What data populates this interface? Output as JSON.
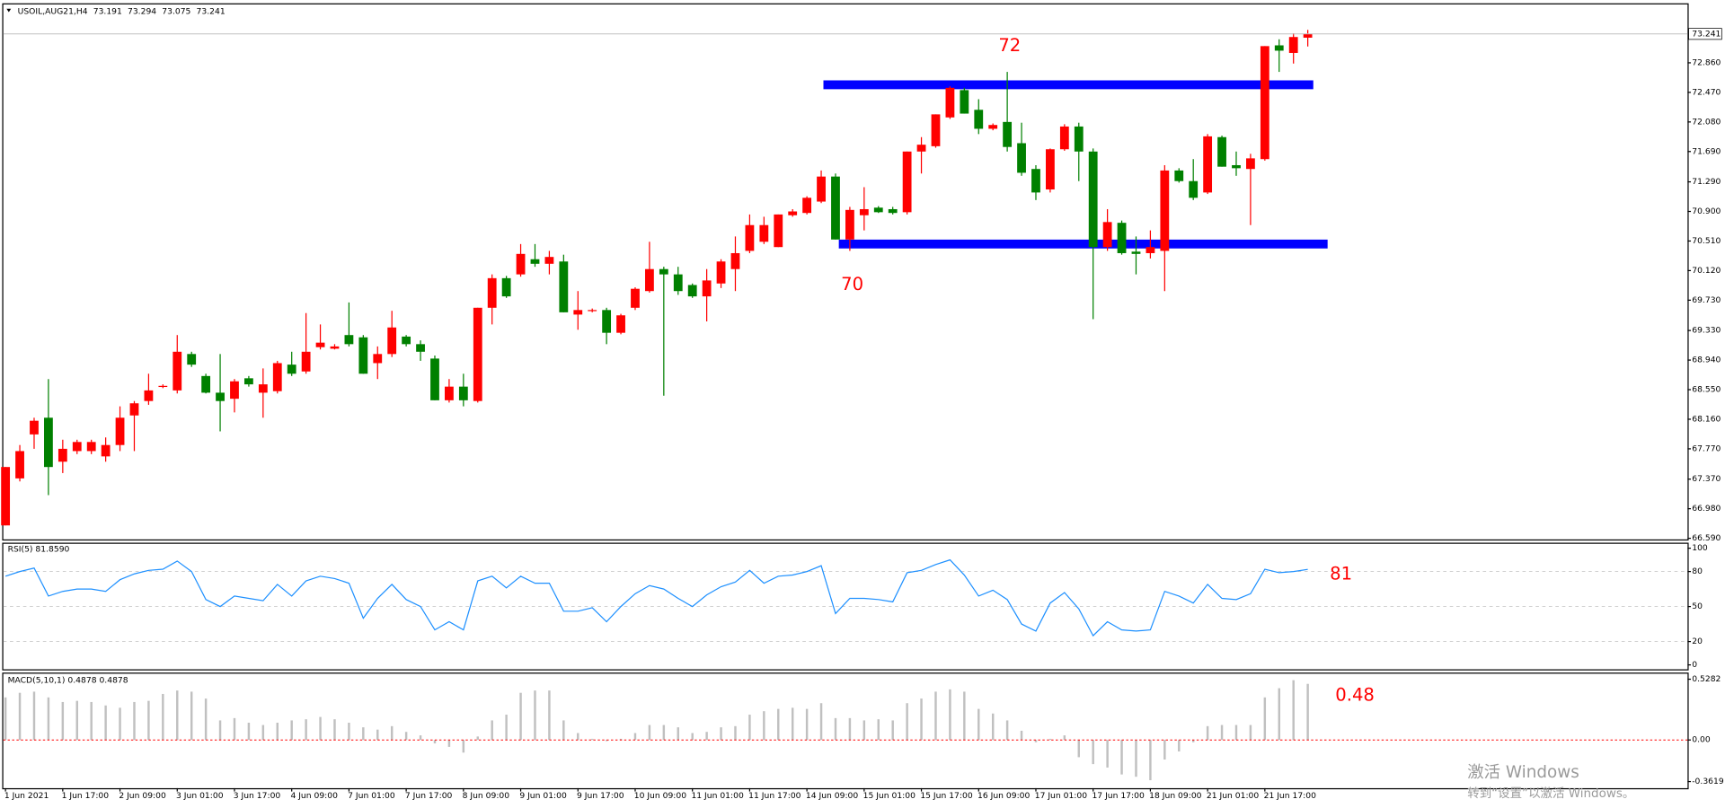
{
  "chart_data": [
    {
      "type": "candlestick",
      "title": "USOIL,AUG21,H4",
      "categories": [
        "1 Jun 2021",
        null,
        null,
        null,
        "1 Jun 17:00",
        null,
        null,
        null,
        "2 Jun 09:00",
        null,
        null,
        null,
        "3 Jun 01:00",
        null,
        null,
        null,
        "3 Jun 17:00",
        null,
        null,
        null,
        "4 Jun 09:00",
        null,
        null,
        null,
        "7 Jun 01:00",
        null,
        null,
        null,
        "7 Jun 17:00",
        null,
        null,
        null,
        "8 Jun 09:00",
        null,
        null,
        null,
        "9 Jun 01:00",
        null,
        null,
        null,
        "9 Jun 17:00",
        null,
        null,
        null,
        "10 Jun 09:00",
        null,
        null,
        null,
        "11 Jun 01:00",
        null,
        null,
        null,
        "11 Jun 17:00",
        null,
        null,
        null,
        "14 Jun 09:00",
        null,
        null,
        null,
        "15 Jun 01:00",
        null,
        null,
        null,
        "15 Jun 17:00",
        null,
        null,
        null,
        "16 Jun 09:00",
        null,
        null,
        null,
        "17 Jun 01:00",
        null,
        null,
        null,
        "17 Jun 17:00",
        null,
        null,
        null,
        "18 Jun 09:00",
        null,
        null,
        null,
        "21 Jun 01:00",
        null,
        null,
        null,
        "21 Jun 17:00",
        null,
        null,
        null
      ],
      "open": [
        66.76,
        67.38,
        67.96,
        68.18,
        67.6,
        67.74,
        67.74,
        67.67,
        67.82,
        68.21,
        68.4,
        68.59,
        68.54,
        69.02,
        68.73,
        68.51,
        68.43,
        68.7,
        68.51,
        68.53,
        68.88,
        68.79,
        69.11,
        69.09,
        69.27,
        69.24,
        68.9,
        69.02,
        69.25,
        69.15,
        68.96,
        68.41,
        68.59,
        68.4,
        69.63,
        70.02,
        70.07,
        70.27,
        70.21,
        70.24,
        69.54,
        69.59,
        69.6,
        69.3,
        69.63,
        69.85,
        70.14,
        70.07,
        69.93,
        69.78,
        69.95,
        70.14,
        70.38,
        70.5,
        70.43,
        70.85,
        70.88,
        71.03,
        71.36,
        70.53,
        70.85,
        70.95,
        70.93,
        70.89,
        71.69,
        71.76,
        72.14,
        72.5,
        72.24,
        71.99,
        72.08,
        71.8,
        71.46,
        71.19,
        71.72,
        72.02,
        71.69,
        70.43,
        70.75,
        70.37,
        70.35,
        70.38,
        71.44,
        71.3,
        71.15,
        71.88,
        71.51,
        71.46,
        71.59,
        73.09,
        72.99,
        73.191
      ],
      "high": [
        67.53,
        67.82,
        68.18,
        68.69,
        67.89,
        67.89,
        67.89,
        67.92,
        68.33,
        68.4,
        68.76,
        68.62,
        69.27,
        69.05,
        68.76,
        69.02,
        68.69,
        68.73,
        68.83,
        68.93,
        69.05,
        69.56,
        69.41,
        69.15,
        69.7,
        69.27,
        69.12,
        69.59,
        69.27,
        69.2,
        69.0,
        68.69,
        68.76,
        69.63,
        70.07,
        70.05,
        70.47,
        70.47,
        70.38,
        70.33,
        69.85,
        69.62,
        69.63,
        69.55,
        69.9,
        70.5,
        70.17,
        70.17,
        69.95,
        70.14,
        70.27,
        70.57,
        70.86,
        70.83,
        70.86,
        70.93,
        71.1,
        71.44,
        71.4,
        70.96,
        71.22,
        70.97,
        70.96,
        71.69,
        71.88,
        72.18,
        72.55,
        72.53,
        72.38,
        72.06,
        72.74,
        72.07,
        71.51,
        71.73,
        72.05,
        72.07,
        71.73,
        70.93,
        70.78,
        70.57,
        70.65,
        71.51,
        71.47,
        71.59,
        71.92,
        71.9,
        71.69,
        71.66,
        73.08,
        73.17,
        73.25,
        73.294
      ],
      "low": [
        66.76,
        67.34,
        67.77,
        67.16,
        67.45,
        67.7,
        67.7,
        67.6,
        67.74,
        67.74,
        68.35,
        68.57,
        68.5,
        68.85,
        68.5,
        68.0,
        68.25,
        68.59,
        68.18,
        68.5,
        68.73,
        68.76,
        69.08,
        69.08,
        69.12,
        68.76,
        68.69,
        68.98,
        69.12,
        68.93,
        68.41,
        68.38,
        68.33,
        68.38,
        69.41,
        69.76,
        70.04,
        70.17,
        70.07,
        69.57,
        69.34,
        69.57,
        69.15,
        69.28,
        69.6,
        69.83,
        68.47,
        69.8,
        69.76,
        69.45,
        69.89,
        69.85,
        70.35,
        70.47,
        70.43,
        70.83,
        70.86,
        71.01,
        70.53,
        70.38,
        70.65,
        70.88,
        70.86,
        70.86,
        71.4,
        71.74,
        72.12,
        72.19,
        71.92,
        71.97,
        71.69,
        71.37,
        71.05,
        71.15,
        71.7,
        71.3,
        69.48,
        70.38,
        70.33,
        70.07,
        70.28,
        69.85,
        71.28,
        71.05,
        71.13,
        71.49,
        71.37,
        70.72,
        71.57,
        72.74,
        72.85,
        73.075
      ],
      "close": [
        67.53,
        67.74,
        68.14,
        67.53,
        67.77,
        67.86,
        67.86,
        67.82,
        68.18,
        68.37,
        68.54,
        68.6,
        69.05,
        68.88,
        68.51,
        68.4,
        68.66,
        68.62,
        68.62,
        68.9,
        68.76,
        69.05,
        69.17,
        69.12,
        69.15,
        68.76,
        69.02,
        69.37,
        69.15,
        69.05,
        68.41,
        68.59,
        68.41,
        69.63,
        70.02,
        69.78,
        70.34,
        70.21,
        70.3,
        69.57,
        69.6,
        69.6,
        69.3,
        69.53,
        69.88,
        70.14,
        70.07,
        69.85,
        69.78,
        69.99,
        70.24,
        70.35,
        70.72,
        70.72,
        70.86,
        70.9,
        71.08,
        71.36,
        70.53,
        70.92,
        70.93,
        70.89,
        70.88,
        71.69,
        71.78,
        72.18,
        72.53,
        72.19,
        71.99,
        72.04,
        71.75,
        71.41,
        71.15,
        71.72,
        72.02,
        71.69,
        70.43,
        70.76,
        70.35,
        70.34,
        70.43,
        71.44,
        71.3,
        71.08,
        71.89,
        71.49,
        71.47,
        71.6,
        73.08,
        73.02,
        73.2,
        73.241
      ],
      "up_color": "#ff0000",
      "down_color": "#008000",
      "ylim": [
        66.59,
        73.63
      ],
      "yticks": [
        {
          "value": 72.86,
          "label": "72.860"
        },
        {
          "value": 72.47,
          "label": "72.470"
        },
        {
          "value": 72.08,
          "label": "72.080"
        },
        {
          "value": 71.69,
          "label": "71.690"
        },
        {
          "value": 71.29,
          "label": "71.290"
        },
        {
          "value": 70.9,
          "label": "70.900"
        },
        {
          "value": 70.51,
          "label": "70.510"
        },
        {
          "value": 70.12,
          "label": "70.120"
        },
        {
          "value": 69.73,
          "label": "69.730"
        },
        {
          "value": 69.33,
          "label": "69.330"
        },
        {
          "value": 68.94,
          "label": "68.940"
        },
        {
          "value": 68.55,
          "label": "68.550"
        },
        {
          "value": 68.16,
          "label": "68.160"
        },
        {
          "value": 67.77,
          "label": "67.770"
        },
        {
          "value": 67.37,
          "label": "67.370"
        },
        {
          "value": 66.98,
          "label": "66.980"
        },
        {
          "value": 66.59,
          "label": "66.590"
        }
      ],
      "lines": [
        {
          "value": 72.57,
          "color": "#0000ff"
        },
        {
          "value": 70.47,
          "color": "#0000ff"
        }
      ],
      "annotations": [
        "72",
        "70"
      ]
    },
    {
      "type": "line",
      "title": "RSI(5) 81.8590",
      "color": "#1e90ff",
      "values": [
        76,
        80,
        83,
        59,
        63,
        65,
        65,
        63,
        73,
        78,
        81,
        82,
        89,
        80,
        56,
        50,
        59,
        57,
        55,
        69,
        59,
        72,
        76,
        74,
        70,
        40,
        57,
        69,
        56,
        50,
        30,
        37,
        30,
        72,
        76,
        66,
        76,
        70,
        70,
        46,
        46,
        49,
        37,
        50,
        61,
        68,
        65,
        57,
        50,
        60,
        67,
        71,
        81,
        70,
        76,
        77,
        80,
        85,
        44,
        57,
        57,
        56,
        54,
        79,
        81,
        86,
        90,
        77,
        59,
        64,
        56,
        35,
        29,
        53,
        62,
        48,
        25,
        37,
        30,
        29,
        30,
        63,
        59,
        53,
        69,
        57,
        56,
        61,
        82,
        79,
        80,
        81.859
      ],
      "ylim": [
        0,
        100
      ],
      "yticks": [
        100,
        80,
        50,
        20,
        0
      ],
      "annotations": [
        "81"
      ]
    },
    {
      "type": "bar",
      "title": "MACD(5,10,1) 0.4878 0.4878",
      "color": "#c0c0c0",
      "values": [
        0.37,
        0.41,
        0.42,
        0.37,
        0.33,
        0.34,
        0.33,
        0.3,
        0.28,
        0.33,
        0.34,
        0.4,
        0.43,
        0.42,
        0.36,
        0.17,
        0.19,
        0.15,
        0.13,
        0.15,
        0.17,
        0.18,
        0.2,
        0.18,
        0.15,
        0.11,
        0.09,
        0.12,
        0.07,
        0.04,
        -0.03,
        -0.06,
        -0.11,
        0.03,
        0.17,
        0.22,
        0.41,
        0.43,
        0.43,
        0.17,
        0.06,
        0.01,
        -0.01,
        0.01,
        0.06,
        0.13,
        0.13,
        0.11,
        0.06,
        0.07,
        0.11,
        0.12,
        0.22,
        0.25,
        0.27,
        0.28,
        0.27,
        0.32,
        0.19,
        0.19,
        0.17,
        0.18,
        0.17,
        0.32,
        0.36,
        0.42,
        0.44,
        0.42,
        0.27,
        0.23,
        0.17,
        0.08,
        -0.02,
        0.01,
        0.04,
        -0.15,
        -0.21,
        -0.24,
        -0.3,
        -0.32,
        -0.35,
        -0.17,
        -0.1,
        -0.02,
        0.12,
        0.13,
        0.13,
        0.13,
        0.37,
        0.45,
        0.52,
        0.4878
      ],
      "ylim": [
        -0.3619,
        0.5282
      ],
      "yticks": [
        0.5282,
        {
          "value": 0,
          "label": "0.00"
        },
        -0.3619
      ],
      "annotations": [
        "0.48"
      ]
    }
  ],
  "watermark": {
    "line1": "激活 Windows",
    "line2": "转到“设置”以激活 Windows。"
  }
}
